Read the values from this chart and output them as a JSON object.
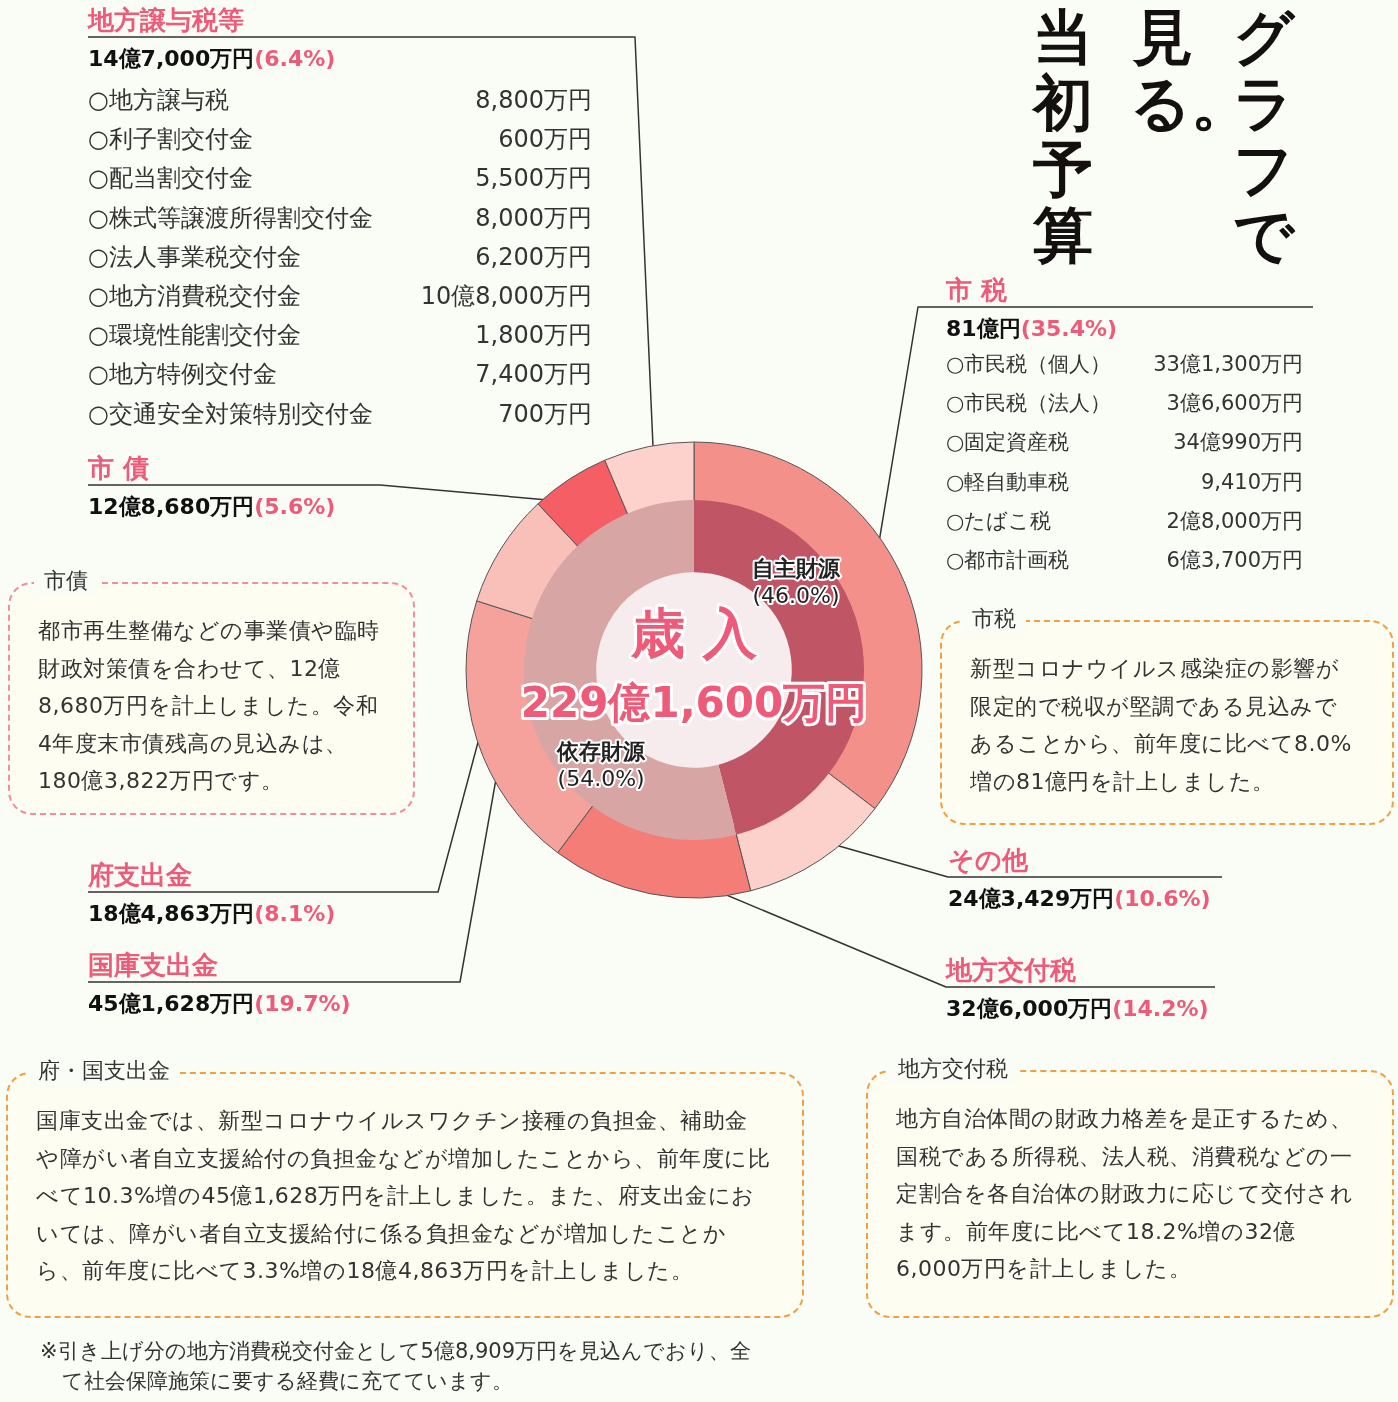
{
  "chart_data": [
    {
      "type": "donut",
      "title": "グラフで見る。当初予算",
      "categories": [
        "市 税",
        "その他",
        "地方交付税",
        "国庫支出金",
        "府支出金",
        "市 債",
        "地方譲与税等"
      ],
      "values": [
        35.4,
        10.6,
        14.2,
        19.7,
        8.1,
        5.6,
        6.4
      ],
      "colors": [
        "#f4908a",
        "#fcd0cb",
        "#f47d78",
        "#f5a29c",
        "#f9bfb9",
        "#f45e64",
        "#fdd2cd"
      ],
      "value_labels": [
        "81億円(35.4%)",
        "24億3,429万円(10.6%)",
        "32億6,000万円(14.2%)",
        "45億1,628万円(19.7%)",
        "18億4,863万円(8.1%)",
        "12億8,680万円(5.6%)",
        "14億7,000万円(6.4%)"
      ],
      "annotations": [
        "○地方譲与税\t8,800万円",
        "○利子割交付金\t600万円",
        "○配当割交付金\t5,500万円",
        "○株式等譲渡所得割交付金\t8,000万円",
        "○法人事業税交付金\t6,200万円",
        "○地方消費税交付金\t10億8,000万円",
        "○環境性能割交付金\t1,800万円",
        "○地方特例交付金\t7,400万円",
        "○交通安全対策特別交付金\t700万円",
        "○市民税（個人）\t33億1,300万円",
        "○市民税（法人）\t3億6,600万円",
        "○固定資産税\t34億990万円",
        "○軽自動車税\t9,410万円",
        "○たばこ税\t2億8,000万円",
        "○都市計画税\t6億3,700万円",
        "市債",
        "都市再生整備などの事業債や臨時財政対策債を合わせて、12億8,680万円を計上しました。令和4年度末市債残高の見込みは、180億3,822万円です。",
        "市税",
        "新型コロナウイルス感染症の影響が限定的で税収が堅調である見込みであることから、前年度に比べて8.0%増の81億円を計上しました。",
        "府・国支出金",
        "国庫支出金では、新型コロナウイルスワクチン接種の負担金、補助金や障がい者自立支援給付の負担金などが増加したことから、前年度に比べて10.3%増の45億1,628万円を計上しました。また、府支出金においては、障がい者自立支援給付に係る負担金などが増加したことから、前年度に比べて3.3%増の18億4,863万円を計上しました。",
        "地方交付税",
        "地方自治体間の財政力格差を是正するため、国税である所得税、法人税、消費税などの一定割合を各自治体の財政力に応じて交付されます。前年度に比べて18.2%増の32億6,000万円を計上しました。",
        "※引き上げ分の地方消費税交付金として5億8,909万円を見込んでおり、全て社会保障施策に要する経費に充てています。"
      ]
    },
    {
      "type": "donut",
      "title": "歳 入",
      "subtitle": "229億1,600万円",
      "categories": [
        "自主財源",
        "依存財源"
      ],
      "values": [
        46.0,
        54.0
      ],
      "colors": [
        "#bf5565",
        "#d8a5a5"
      ],
      "value_labels": [
        "(46.0%)",
        "(54.0%)"
      ]
    }
  ]
}
